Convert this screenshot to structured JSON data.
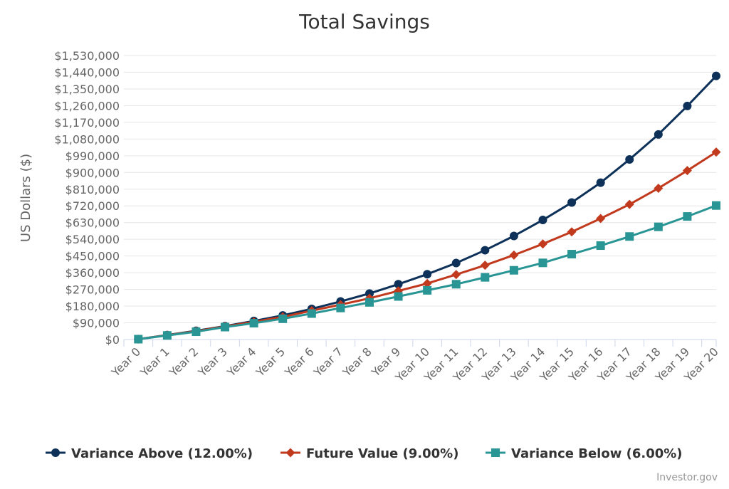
{
  "chart_data": {
    "type": "line",
    "title": "Total Savings",
    "ylabel": "US Dollars ($)",
    "xlabel": "",
    "ylim": [
      0,
      1530000
    ],
    "yticks": [
      0,
      90000,
      180000,
      270000,
      360000,
      450000,
      540000,
      630000,
      720000,
      810000,
      900000,
      990000,
      1080000,
      1170000,
      1260000,
      1350000,
      1440000,
      1530000
    ],
    "ytick_labels": [
      "$0",
      "$90,000",
      "$180,000",
      "$270,000",
      "$360,000",
      "$450,000",
      "$540,000",
      "$630,000",
      "$720,000",
      "$810,000",
      "$900,000",
      "$990,000",
      "$1,080,000",
      "$1,170,000",
      "$1,260,000",
      "$1,350,000",
      "$1,440,000",
      "$1,530,000"
    ],
    "categories": [
      "Year 0",
      "Year 1",
      "Year 2",
      "Year 3",
      "Year 4",
      "Year 5",
      "Year 6",
      "Year 7",
      "Year 8",
      "Year 9",
      "Year 10",
      "Year 11",
      "Year 12",
      "Year 13",
      "Year 14",
      "Year 15",
      "Year 16",
      "Year 17",
      "Year 18",
      "Year 19",
      "Year 20"
    ],
    "grid": true,
    "legend_position": "bottom",
    "series": [
      {
        "name": "Variance Above (12.00%)",
        "color": "#0d3159",
        "marker": "circle",
        "values": [
          2000,
          24000,
          47000,
          72000,
          100000,
          130000,
          165000,
          205000,
          248000,
          298000,
          352000,
          412000,
          481000,
          558000,
          644000,
          738000,
          845000,
          970000,
          1105000,
          1258000,
          1420000
        ]
      },
      {
        "name": "Future Value (9.00%)",
        "color": "#c23a1e",
        "marker": "diamond",
        "values": [
          2000,
          23500,
          45000,
          70000,
          95000,
          122000,
          155000,
          188000,
          222000,
          262000,
          302000,
          350000,
          400000,
          455000,
          515000,
          580000,
          652000,
          728000,
          815000,
          910000,
          1010000
        ]
      },
      {
        "name": "Variance Below (6.00%)",
        "color": "#2a9595",
        "marker": "square",
        "values": [
          2000,
          22000,
          42000,
          67000,
          88000,
          112000,
          140000,
          170000,
          200000,
          232000,
          265000,
          298000,
          335000,
          373000,
          413000,
          460000,
          506000,
          555000,
          607000,
          663000,
          722000
        ]
      }
    ],
    "credit": "Investor.gov"
  }
}
